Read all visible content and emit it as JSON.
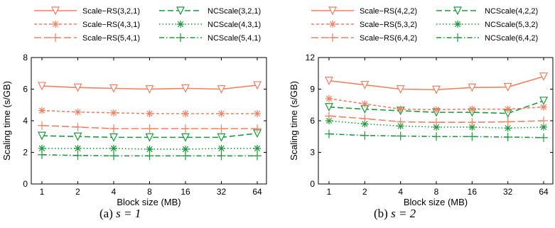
{
  "chart_data": [
    {
      "type": "line",
      "caption": "(a)",
      "caption_math": "s = 1",
      "xlabel": "Block size (MB)",
      "ylabel": "Scaling time (s/GB)",
      "categories": [
        "1",
        "2",
        "4",
        "8",
        "16",
        "32",
        "64"
      ],
      "ylim": [
        0,
        8
      ],
      "yticks": [
        "0",
        "2",
        "4",
        "6",
        "8"
      ],
      "legend_position": "top",
      "series": [
        {
          "name": "Scale−RS(3,2,1)",
          "color": "#f08060",
          "dash": "solid",
          "marker": "triangle-down",
          "values": [
            6.2,
            6.1,
            6.05,
            6.0,
            6.05,
            6.0,
            6.25
          ]
        },
        {
          "name": "NCScale(3,2,1)",
          "color": "#1a9a3a",
          "dash": "dashed",
          "marker": "triangle-down",
          "values": [
            3.05,
            3.0,
            2.95,
            2.95,
            2.95,
            2.95,
            3.2
          ]
        },
        {
          "name": "Scale−RS(4,3,1)",
          "color": "#f08060",
          "dash": "short-dash",
          "marker": "asterisk",
          "values": [
            4.65,
            4.55,
            4.5,
            4.45,
            4.45,
            4.45,
            4.45
          ]
        },
        {
          "name": "NCScale(4,3,1)",
          "color": "#1a9a3a",
          "dash": "dotted",
          "marker": "asterisk",
          "values": [
            2.25,
            2.25,
            2.25,
            2.2,
            2.2,
            2.25,
            2.25
          ]
        },
        {
          "name": "Scale−RS(5,4,1)",
          "color": "#f08060",
          "dash": "long-dash",
          "marker": "plus",
          "values": [
            3.7,
            3.6,
            3.5,
            3.5,
            3.5,
            3.5,
            3.5
          ]
        },
        {
          "name": "NCScale(5,4,1)",
          "color": "#1a9a3a",
          "dash": "dash-dot",
          "marker": "plus",
          "values": [
            1.85,
            1.8,
            1.78,
            1.78,
            1.78,
            1.78,
            1.78
          ]
        }
      ]
    },
    {
      "type": "line",
      "caption": "(b)",
      "caption_math": "s = 2",
      "xlabel": "Block size (MB)",
      "ylabel": "Scaling time (s/GB)",
      "categories": [
        "1",
        "2",
        "4",
        "8",
        "16",
        "32",
        "64"
      ],
      "ylim": [
        0,
        12
      ],
      "yticks": [
        "0",
        "3",
        "6",
        "9",
        "12"
      ],
      "legend_position": "top",
      "series": [
        {
          "name": "Scale−RS(4,2,2)",
          "color": "#f08060",
          "dash": "solid",
          "marker": "triangle-down",
          "values": [
            9.8,
            9.4,
            9.0,
            8.95,
            9.15,
            9.2,
            10.2
          ]
        },
        {
          "name": "NCScale(4,2,2)",
          "color": "#1a9a3a",
          "dash": "dashed",
          "marker": "triangle-down",
          "values": [
            7.3,
            7.1,
            6.95,
            6.8,
            6.8,
            6.7,
            7.9
          ]
        },
        {
          "name": "Scale−RS(5,3,2)",
          "color": "#f08060",
          "dash": "short-dash",
          "marker": "asterisk",
          "values": [
            8.1,
            7.6,
            7.1,
            7.05,
            7.1,
            7.1,
            7.3
          ]
        },
        {
          "name": "NCScale(5,3,2)",
          "color": "#1a9a3a",
          "dash": "dotted",
          "marker": "asterisk",
          "values": [
            6.0,
            5.7,
            5.5,
            5.4,
            5.4,
            5.3,
            5.4
          ]
        },
        {
          "name": "Scale−RS(6,4,2)",
          "color": "#f08060",
          "dash": "long-dash",
          "marker": "plus",
          "values": [
            6.45,
            6.2,
            5.9,
            5.85,
            5.85,
            5.9,
            6.0
          ]
        },
        {
          "name": "NCScale(6,4,2)",
          "color": "#1a9a3a",
          "dash": "dash-dot",
          "marker": "plus",
          "values": [
            4.75,
            4.6,
            4.55,
            4.5,
            4.5,
            4.45,
            4.4
          ]
        }
      ]
    }
  ]
}
